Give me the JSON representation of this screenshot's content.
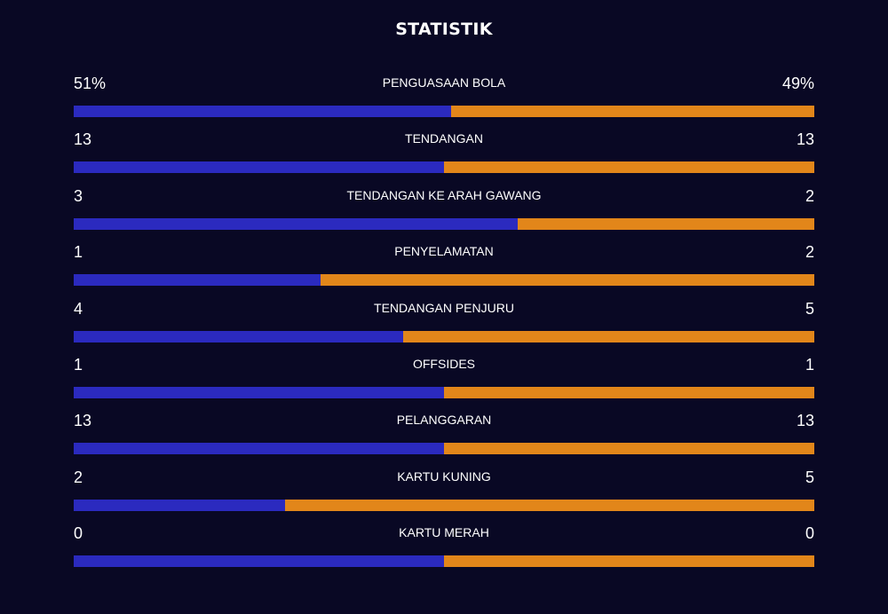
{
  "title": "STATISTIK",
  "colors": {
    "background": "#090824",
    "home_bar": "#2b2abf",
    "away_bar": "#e2861a",
    "text": "#ffffff"
  },
  "stats": [
    {
      "label": "PENGUASAAN BOLA",
      "home": "51%",
      "away": "49%",
      "home_share": 0.51
    },
    {
      "label": "TENDANGAN",
      "home": "13",
      "away": "13",
      "home_share": 0.5
    },
    {
      "label": "TENDANGAN KE ARAH GAWANG",
      "home": "3",
      "away": "2",
      "home_share": 0.6
    },
    {
      "label": "PENYELAMATAN",
      "home": "1",
      "away": "2",
      "home_share": 0.3333
    },
    {
      "label": "TENDANGAN PENJURU",
      "home": "4",
      "away": "5",
      "home_share": 0.4444
    },
    {
      "label": "OFFSIDES",
      "home": "1",
      "away": "1",
      "home_share": 0.5
    },
    {
      "label": "PELANGGARAN",
      "home": "13",
      "away": "13",
      "home_share": 0.5
    },
    {
      "label": "KARTU KUNING",
      "home": "2",
      "away": "5",
      "home_share": 0.2857
    },
    {
      "label": "KARTU MERAH",
      "home": "0",
      "away": "0",
      "home_share": 0.5
    }
  ]
}
